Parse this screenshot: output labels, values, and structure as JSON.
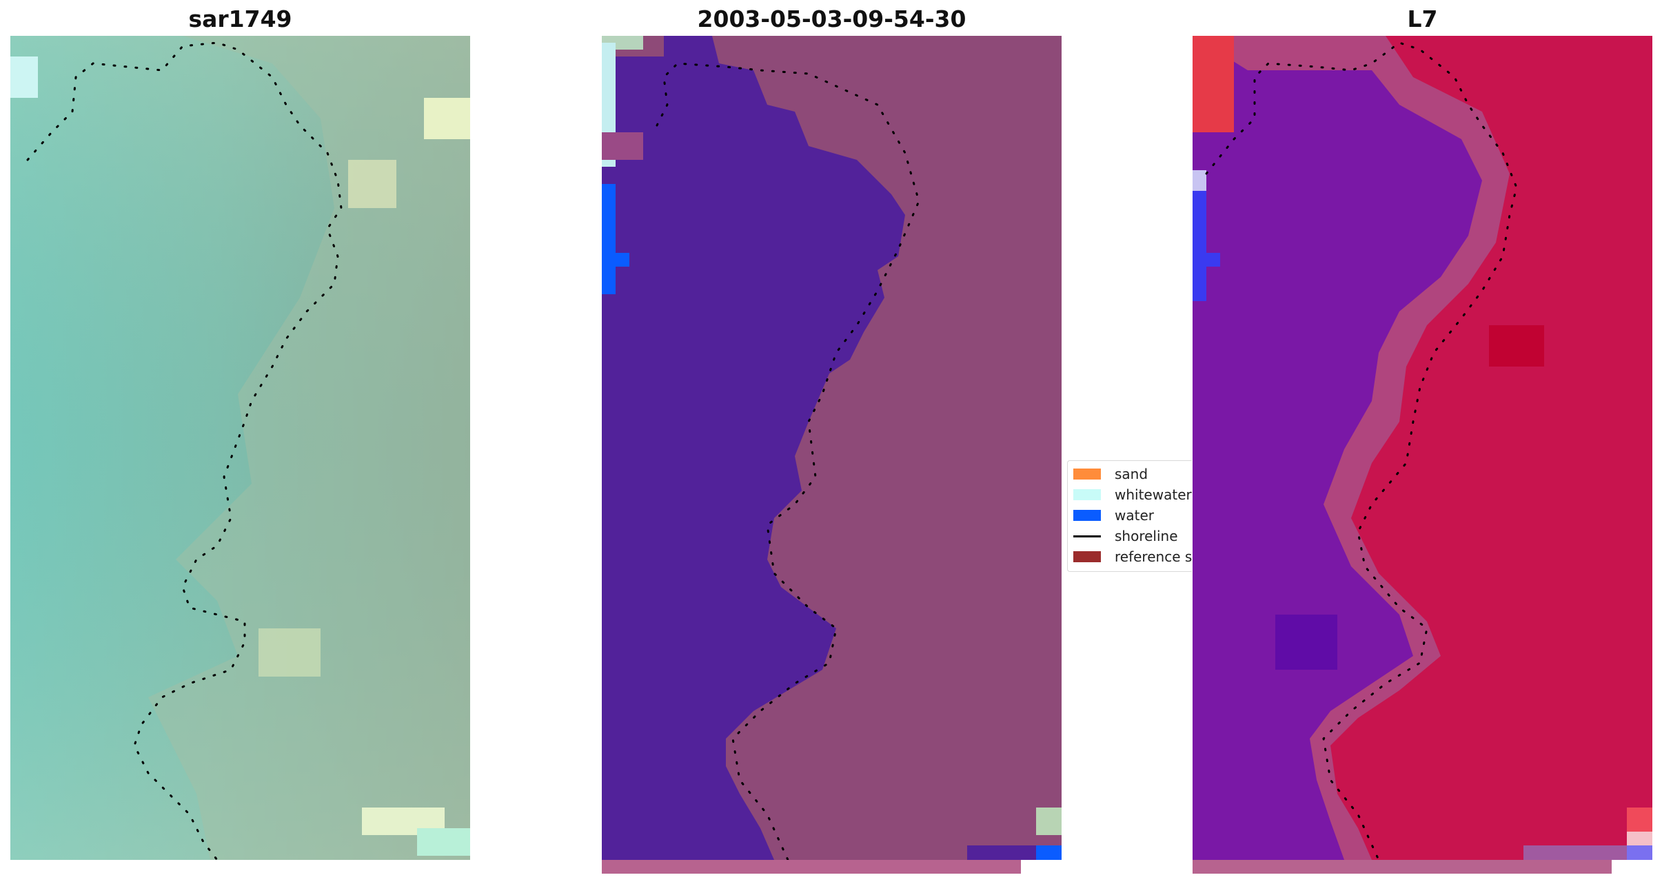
{
  "panels": [
    {
      "title": "sar1749"
    },
    {
      "title": "2003-05-03-09-54-30"
    },
    {
      "title": "L7"
    }
  ],
  "legend": {
    "items": [
      {
        "label": "sand",
        "color": "#ff8c3a",
        "kind": "swatch"
      },
      {
        "label": "whitewater",
        "color": "#c8fbf8",
        "kind": "swatch"
      },
      {
        "label": "water",
        "color": "#0a5cff",
        "kind": "swatch"
      },
      {
        "label": "shoreline",
        "color": "#000000",
        "kind": "line"
      },
      {
        "label": "reference s",
        "color": "#9b2c2c",
        "kind": "swatch"
      }
    ]
  },
  "colors": {
    "rgb_water": "#74c4b8",
    "rgb_land": "#9fb8a0",
    "classified_water": "#52229a",
    "classified_land": "#8e4a78",
    "ndwi_water": "#7a18a6",
    "ndwi_land": "#c8144e",
    "strip": "#b7638f"
  }
}
